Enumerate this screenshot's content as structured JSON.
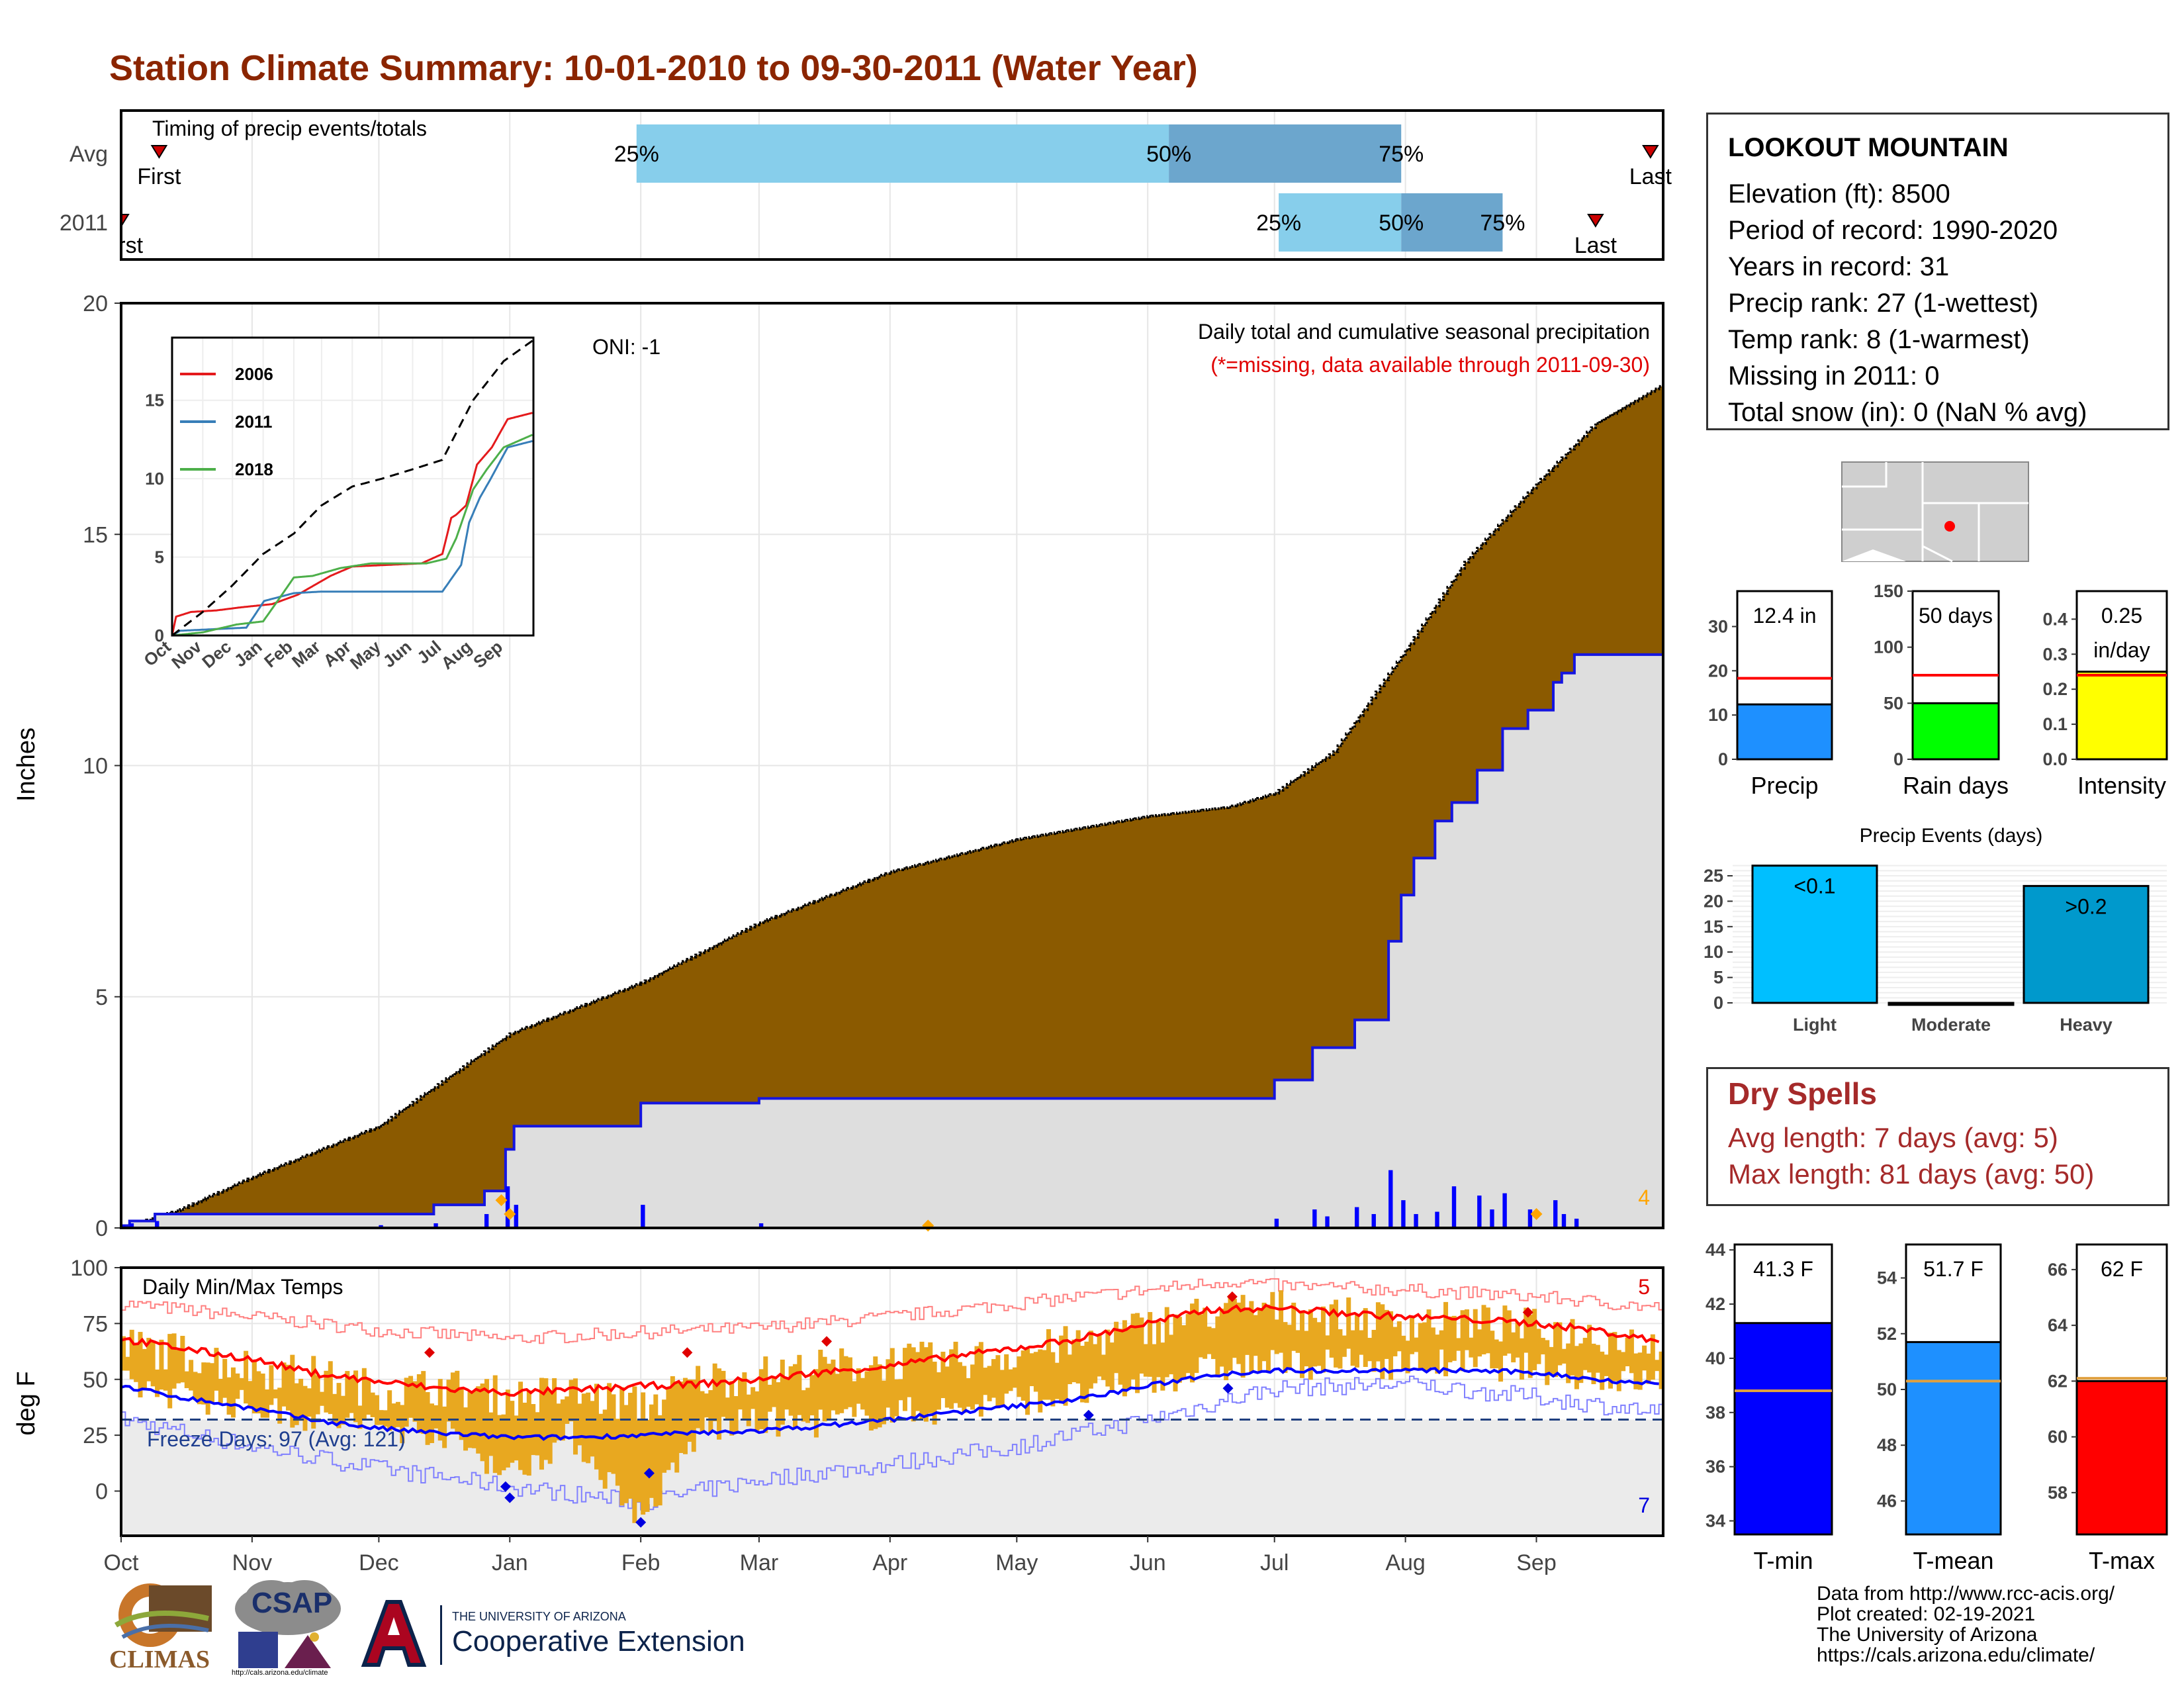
{
  "title": "Station Climate Summary: 10-01-2010 to 09-30-2011 (Water Year)",
  "station": {
    "name": "LOOKOUT MOUNTAIN",
    "lines": [
      "Elevation (ft): 8500",
      "Period of record: 1990-2020",
      "Years in record: 31",
      "Precip rank: 27 (1-wettest)",
      "Temp rank: 8 (1-warmest)",
      "Missing in 2011: 0",
      "Total snow (in): 0 (NaN % avg)"
    ]
  },
  "dry_spells": {
    "title": "Dry Spells",
    "avg_line": "Avg length: 7 days (avg: 5)",
    "max_line": "Max length: 81 days (avg: 50)"
  },
  "credits": "Data from http://www.rcc-acis.org/\nPlot created: 02-19-2021\nThe University of Arizona\nhttps://cals.arizona.edu/climate/",
  "logos": {
    "climas": "CLIMAS",
    "csap": "CSAP",
    "csap_url": "http://cals.arizona.edu/climate",
    "ua_top": "THE UNIVERSITY OF ARIZONA",
    "ua_main": "Cooperative Extension"
  },
  "colors": {
    "title": "#8B2500",
    "cum_fill": "#8B5A00",
    "cum_2011": "#1515E0",
    "avg_fill": "#DEDEDE",
    "temp_bar": "#E8A820",
    "tmax_line": "#FF0000",
    "tmin_line": "#0000FF",
    "dry": "#A52A2A"
  },
  "chart_data": [
    {
      "type": "bar",
      "title": "Timing of precip events/totals",
      "categories": [
        "Avg",
        "2011"
      ],
      "x_months": [
        "Oct",
        "Nov",
        "Dec",
        "Jan",
        "Feb",
        "Mar",
        "Apr",
        "May",
        "Jun",
        "Jul",
        "Aug",
        "Sep"
      ],
      "rows": [
        {
          "name": "Avg",
          "first_label": "First",
          "last_label": "Last",
          "first": "2010-10-10",
          "last": "2011-09-28",
          "p25": "2011-01-31",
          "p50": "2011-06-06",
          "p75": "2011-07-31",
          "labels": [
            "25%",
            "50%",
            "75%"
          ]
        },
        {
          "name": "2011",
          "first_label": "First",
          "last_label": "Last",
          "first": "2010-10-01",
          "last": "2011-09-15",
          "p25": "2011-07-02",
          "p50": "2011-07-31",
          "p75": "2011-08-24",
          "labels": [
            "25%",
            "50%",
            "75%"
          ]
        }
      ]
    },
    {
      "type": "area",
      "title": "Daily total and cumulative seasonal precipitation",
      "subtitle": "(*=missing, data available through 2011-09-30)",
      "annotation": "ONI: -1",
      "corner_count": "4",
      "ylabel": "Inches",
      "ylim": [
        0,
        20
      ],
      "yticks": [
        0,
        5,
        10,
        15,
        20
      ],
      "x_months": [
        "Oct",
        "Nov",
        "Dec",
        "Jan",
        "Feb",
        "Mar",
        "Apr",
        "May",
        "Jun",
        "Jul",
        "Aug",
        "Sep"
      ],
      "avg_cumulative": {
        "dates": [
          "2010-10-01",
          "2010-10-15",
          "2010-11-01",
          "2010-12-01",
          "2011-01-01",
          "2011-02-01",
          "2011-03-01",
          "2011-04-01",
          "2011-05-01",
          "2011-06-01",
          "2011-06-20",
          "2011-07-01",
          "2011-07-15",
          "2011-08-01",
          "2011-08-15",
          "2011-09-01",
          "2011-09-15",
          "2011-09-30"
        ],
        "values": [
          0.0,
          0.4,
          1.1,
          2.2,
          4.2,
          5.3,
          6.6,
          7.7,
          8.4,
          8.9,
          9.1,
          9.4,
          10.3,
          12.5,
          14.4,
          16.1,
          17.4,
          18.2
        ]
      },
      "cumulative_2011": {
        "dates": [
          "2010-10-01",
          "2010-10-03",
          "2010-10-09",
          "2010-11-16",
          "2010-12-01",
          "2010-12-14",
          "2010-12-26",
          "2010-12-31",
          "2011-01-02",
          "2011-02-01",
          "2011-02-28",
          "2011-03-01",
          "2011-06-30",
          "2011-07-01",
          "2011-07-10",
          "2011-07-20",
          "2011-07-28",
          "2011-07-31",
          "2011-08-03",
          "2011-08-08",
          "2011-08-12",
          "2011-08-18",
          "2011-08-24",
          "2011-08-30",
          "2011-09-05",
          "2011-09-07",
          "2011-09-10",
          "2011-09-30"
        ],
        "values": [
          0.05,
          0.15,
          0.3,
          0.3,
          0.3,
          0.5,
          0.8,
          1.7,
          2.2,
          2.7,
          2.7,
          2.8,
          2.8,
          3.2,
          3.9,
          4.5,
          6.2,
          7.2,
          8.0,
          8.8,
          9.2,
          9.9,
          10.8,
          11.2,
          11.8,
          12.0,
          12.4,
          12.4
        ]
      },
      "daily_2011": {
        "dates": [
          "2010-10-01",
          "2010-10-03",
          "2010-10-09",
          "2010-12-01",
          "2010-12-14",
          "2010-12-26",
          "2010-12-31",
          "2011-01-02",
          "2011-02-01",
          "2011-03-01",
          "2011-07-01",
          "2011-07-10",
          "2011-07-13",
          "2011-07-20",
          "2011-07-24",
          "2011-07-28",
          "2011-07-31",
          "2011-08-03",
          "2011-08-08",
          "2011-08-12",
          "2011-08-18",
          "2011-08-21",
          "2011-08-24",
          "2011-08-30",
          "2011-09-05",
          "2011-09-07",
          "2011-09-10"
        ],
        "values": [
          0.05,
          0.1,
          0.15,
          0.06,
          0.1,
          0.3,
          0.9,
          0.5,
          0.5,
          0.1,
          0.2,
          0.4,
          0.25,
          0.45,
          0.3,
          1.25,
          0.6,
          0.3,
          0.35,
          0.9,
          0.7,
          0.4,
          0.75,
          0.4,
          0.6,
          0.3,
          0.2
        ]
      },
      "markers": {
        "dates": [
          "2010-12-30",
          "2011-01-01",
          "2011-04-10",
          "2011-09-01"
        ],
        "values": [
          0.6,
          0.3,
          0.05,
          0.3
        ]
      },
      "inset": {
        "type": "line",
        "x_months": [
          "Oct",
          "Nov",
          "Dec",
          "Jan",
          "Feb",
          "Mar",
          "Apr",
          "May",
          "Jun",
          "Jul",
          "Aug",
          "Sep"
        ],
        "ylim": [
          0,
          19
        ],
        "yticks": [
          0,
          5,
          10,
          15
        ],
        "series": [
          {
            "name": "2006",
            "color": "#E41A1C",
            "dates": [
              "2005-10-01",
              "2005-10-05",
              "2005-10-20",
              "2005-11-15",
              "2005-12-10",
              "2006-01-10",
              "2006-02-05",
              "2006-03-10",
              "2006-04-01",
              "2006-06-10",
              "2006-07-01",
              "2006-07-10",
              "2006-07-15",
              "2006-07-25",
              "2006-08-05",
              "2006-08-20",
              "2006-09-05",
              "2006-09-30"
            ],
            "values": [
              0,
              1.2,
              1.5,
              1.6,
              1.8,
              2.0,
              2.6,
              3.8,
              4.4,
              4.6,
              5.2,
              7.5,
              7.7,
              8.3,
              10.9,
              12.0,
              13.8,
              14.2
            ]
          },
          {
            "name": "2011",
            "color": "#377EB8",
            "dates": [
              "2010-10-01",
              "2010-10-09",
              "2010-12-15",
              "2011-01-02",
              "2011-02-01",
              "2011-03-01",
              "2011-07-01",
              "2011-07-20",
              "2011-07-28",
              "2011-08-08",
              "2011-08-18",
              "2011-09-05",
              "2011-09-30"
            ],
            "values": [
              0,
              0.3,
              0.5,
              2.2,
              2.7,
              2.8,
              2.8,
              4.5,
              7.2,
              8.8,
              9.9,
              12.0,
              12.4
            ]
          },
          {
            "name": "2018",
            "color": "#4DAF4A",
            "dates": [
              "2017-10-01",
              "2017-11-01",
              "2017-12-05",
              "2018-01-01",
              "2018-01-20",
              "2018-02-01",
              "2018-02-20",
              "2018-03-20",
              "2018-04-20",
              "2018-06-15",
              "2018-07-05",
              "2018-07-15",
              "2018-08-01",
              "2018-08-15",
              "2018-09-01",
              "2018-09-30"
            ],
            "values": [
              0,
              0.2,
              0.7,
              0.9,
              2.6,
              3.7,
              3.8,
              4.3,
              4.6,
              4.6,
              4.9,
              6.2,
              9.3,
              10.6,
              12.0,
              12.8
            ]
          }
        ],
        "avg_line": {
          "dates": [
            "2010-10-01",
            "2010-11-01",
            "2010-12-01",
            "2011-01-01",
            "2011-02-01",
            "2011-03-01",
            "2011-04-01",
            "2011-05-01",
            "2011-06-01",
            "2011-07-01",
            "2011-08-01",
            "2011-09-01",
            "2011-09-30"
          ],
          "values": [
            0,
            1.5,
            3.2,
            5.2,
            6.5,
            8.3,
            9.5,
            10.0,
            10.6,
            11.2,
            15.0,
            17.5,
            18.8
          ]
        }
      }
    },
    {
      "type": "bar",
      "title": "Daily Min/Max Temps",
      "annotation": "Freeze Days: 97 (Avg: 121)",
      "count_top": "5",
      "count_bottom": "7",
      "ylabel": "deg F",
      "ylim": [
        -20,
        100
      ],
      "yticks": [
        0,
        25,
        50,
        75,
        100
      ],
      "freeze_line": 32,
      "x_months": [
        "Oct",
        "Nov",
        "Dec",
        "Jan",
        "Feb",
        "Mar",
        "Apr",
        "May",
        "Jun",
        "Jul",
        "Aug",
        "Sep"
      ],
      "tmax_avg": {
        "dates": [
          "2010-10-01",
          "2010-10-15",
          "2010-11-01",
          "2010-11-15",
          "2010-12-01",
          "2010-12-15",
          "2011-01-01",
          "2011-01-15",
          "2011-02-01",
          "2011-02-15",
          "2011-03-01",
          "2011-03-15",
          "2011-04-01",
          "2011-04-15",
          "2011-05-01",
          "2011-05-15",
          "2011-06-01",
          "2011-06-15",
          "2011-07-01",
          "2011-07-15",
          "2011-08-01",
          "2011-08-15",
          "2011-09-01",
          "2011-09-15",
          "2011-09-30"
        ],
        "values": [
          68,
          64,
          59,
          53,
          49,
          46,
          44,
          45,
          47,
          48,
          50,
          53,
          56,
          60,
          64,
          68,
          75,
          81,
          82,
          80,
          78,
          77,
          75,
          72,
          67
        ]
      },
      "tmin_avg": {
        "dates": [
          "2010-10-01",
          "2010-10-15",
          "2010-11-01",
          "2010-11-15",
          "2010-12-01",
          "2010-12-15",
          "2011-01-01",
          "2011-01-15",
          "2011-02-01",
          "2011-02-15",
          "2011-03-01",
          "2011-03-15",
          "2011-04-01",
          "2011-04-15",
          "2011-05-01",
          "2011-05-15",
          "2011-06-01",
          "2011-06-15",
          "2011-07-01",
          "2011-07-15",
          "2011-08-01",
          "2011-08-15",
          "2011-09-01",
          "2011-09-15",
          "2011-09-30"
        ],
        "values": [
          47,
          42,
          37,
          32,
          28,
          26,
          24,
          24,
          25,
          26,
          27,
          29,
          32,
          35,
          38,
          41,
          47,
          52,
          54,
          54,
          54,
          54,
          53,
          50,
          48
        ]
      },
      "record_high": {
        "dates": [
          "2010-10-01",
          "2010-11-01",
          "2010-12-01",
          "2011-01-01",
          "2011-02-01",
          "2011-03-01",
          "2011-04-01",
          "2011-05-01",
          "2011-06-01",
          "2011-06-20",
          "2011-07-01",
          "2011-08-01",
          "2011-09-01",
          "2011-09-30"
        ],
        "values": [
          84,
          78,
          72,
          68,
          71,
          73,
          78,
          84,
          90,
          94,
          92,
          90,
          87,
          82
        ]
      },
      "record_low": {
        "dates": [
          "2010-10-01",
          "2010-11-01",
          "2010-12-01",
          "2011-01-01",
          "2011-02-01",
          "2011-03-01",
          "2011-04-01",
          "2011-05-01",
          "2011-06-01",
          "2011-07-01",
          "2011-08-01",
          "2011-09-01",
          "2011-09-30"
        ],
        "values": [
          32,
          20,
          10,
          2,
          -5,
          5,
          12,
          20,
          32,
          46,
          48,
          42,
          35
        ]
      },
      "daily_2011_sample": {
        "dates": [
          "2010-10-01",
          "2010-10-15",
          "2010-11-01",
          "2010-11-15",
          "2010-12-01",
          "2010-12-15",
          "2011-01-01",
          "2011-01-15",
          "2011-02-01",
          "2011-02-15",
          "2011-03-01",
          "2011-03-15",
          "2011-04-01",
          "2011-04-15",
          "2011-05-01",
          "2011-05-15",
          "2011-06-01",
          "2011-06-15",
          "2011-07-01",
          "2011-07-15",
          "2011-08-01",
          "2011-08-15",
          "2011-09-01",
          "2011-09-15",
          "2011-09-30"
        ],
        "tmax": [
          65,
          62,
          55,
          52,
          45,
          47,
          42,
          44,
          38,
          50,
          52,
          55,
          58,
          58,
          62,
          66,
          74,
          80,
          82,
          78,
          76,
          76,
          73,
          70,
          66
        ],
        "tmin": [
          45,
          40,
          35,
          30,
          26,
          24,
          5,
          22,
          -15,
          25,
          28,
          28,
          32,
          34,
          38,
          40,
          46,
          52,
          54,
          54,
          54,
          54,
          52,
          48,
          46
        ]
      },
      "high_markers": {
        "dates": [
          "2010-12-13",
          "2011-02-12",
          "2011-03-17",
          "2011-06-21",
          "2011-08-30"
        ],
        "values": [
          62,
          62,
          67,
          87,
          80
        ]
      },
      "low_markers": {
        "dates": [
          "2010-12-31",
          "2011-01-01",
          "2011-02-01",
          "2011-02-03",
          "2011-05-18",
          "2011-06-20"
        ],
        "values": [
          2,
          -3,
          -14,
          8,
          34,
          46
        ]
      }
    },
    {
      "type": "bar",
      "title": "Precip",
      "ylim": [
        0,
        38
      ],
      "yticks": [
        0,
        10,
        20,
        30
      ],
      "value": 12.4,
      "avg": 18.3,
      "label_line1": "12.4 in",
      "label_line2": "",
      "color": "#1E90FF"
    },
    {
      "type": "bar",
      "title": "Rain days",
      "ylim": [
        0,
        150
      ],
      "yticks": [
        0,
        50,
        100,
        150
      ],
      "value": 50,
      "avg": 75,
      "label_line1": "50 days",
      "label_line2": "",
      "color": "#00FF00"
    },
    {
      "type": "bar",
      "title": "Intensity",
      "ylim": [
        0,
        0.48
      ],
      "yticks": [
        0.0,
        0.1,
        0.2,
        0.3,
        0.4
      ],
      "value": 0.25,
      "avg": 0.24,
      "label_line1": "0.25",
      "label_line2": "in/day",
      "color": "#FFFF00"
    },
    {
      "type": "bar",
      "title": "Precip Events (days)",
      "categories": [
        "Light",
        "Moderate",
        "Heavy"
      ],
      "values": [
        27,
        0,
        23
      ],
      "bar_labels": [
        "<0.1",
        "",
        ">0.2"
      ],
      "colors": [
        "#00BFFF",
        "#00BFFF",
        "#0099CC"
      ],
      "ylim": [
        0,
        28
      ],
      "yticks": [
        0,
        5,
        10,
        15,
        20,
        25
      ]
    },
    {
      "type": "bar",
      "title": "T-min",
      "ylim": [
        33.5,
        44.2
      ],
      "yticks": [
        34,
        36,
        38,
        40,
        42,
        44
      ],
      "value": 41.3,
      "avg": 38.8,
      "label_line1": "41.3 F",
      "color": "#0000FF"
    },
    {
      "type": "bar",
      "title": "T-mean",
      "ylim": [
        44.8,
        55.2
      ],
      "yticks": [
        46,
        48,
        50,
        52,
        54
      ],
      "value": 51.7,
      "avg": 50.3,
      "label_line1": "51.7 F",
      "color": "#1E90FF"
    },
    {
      "type": "bar",
      "title": "T-max",
      "ylim": [
        56.5,
        66.9
      ],
      "yticks": [
        58,
        60,
        62,
        64,
        66
      ],
      "value": 62,
      "avg": 62.1,
      "label_line1": "62 F",
      "color": "#FF0000"
    }
  ]
}
